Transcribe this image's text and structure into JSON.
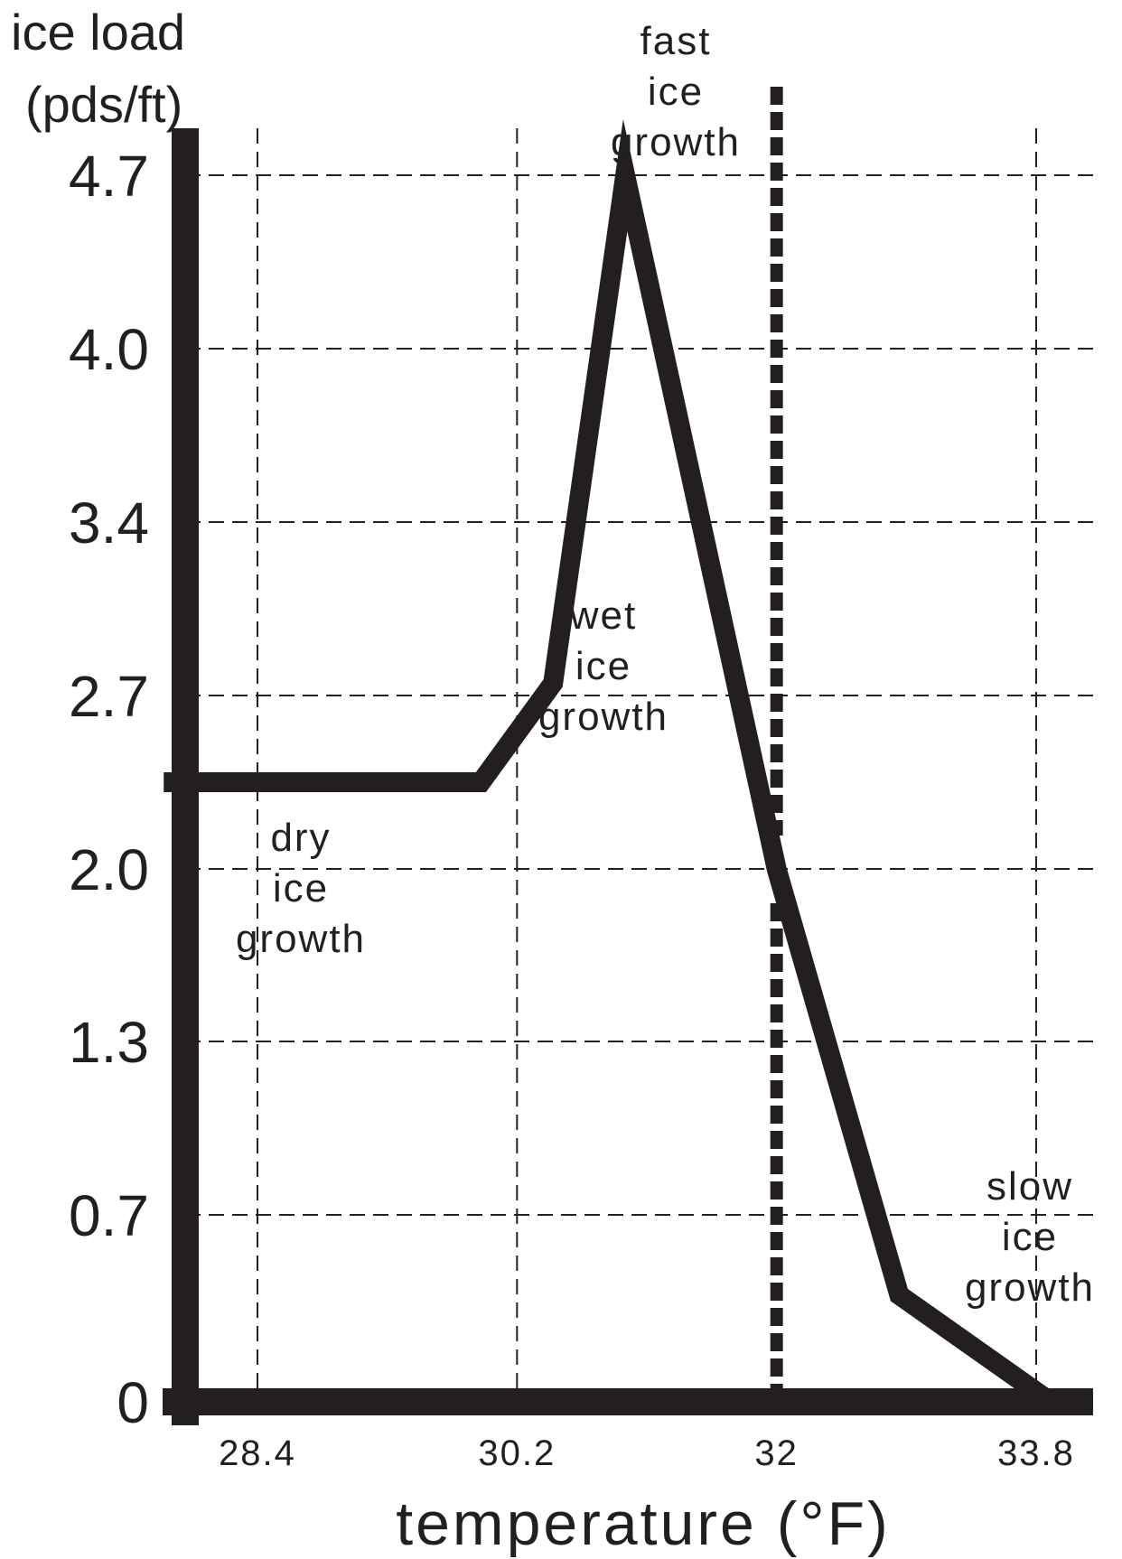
{
  "chart_data": {
    "type": "line",
    "title": "",
    "ylabel_lines": [
      "ice load",
      "(pds/ft)"
    ],
    "xlabel": "temperature (°F)",
    "y_ticks": [
      "0",
      "0.7",
      "1.3",
      "2.0",
      "2.7",
      "3.4",
      "4.0",
      "4.7"
    ],
    "x_ticks": [
      "28.4",
      "30.2",
      "32",
      "33.8"
    ],
    "grid": true,
    "reference_line": {
      "x": 32,
      "style": "dashed-thick"
    },
    "series": [
      {
        "points": [
          {
            "x": 27.75,
            "y": 2.35
          },
          {
            "x": 29.95,
            "y": 2.35
          },
          {
            "x": 30.45,
            "y": 2.75
          },
          {
            "x": 30.95,
            "y": 4.7
          },
          {
            "x": 32.0,
            "y": 2.0
          },
          {
            "x": 32.85,
            "y": 0.4
          },
          {
            "x": 33.9,
            "y": 0.0
          }
        ]
      }
    ],
    "annotations": [
      {
        "lines": [
          "fast",
          "ice",
          "growth"
        ]
      },
      {
        "lines": [
          "wet",
          "ice",
          "growth"
        ]
      },
      {
        "lines": [
          "dry",
          "ice",
          "growth"
        ]
      },
      {
        "lines": [
          "slow",
          "ice",
          "growth"
        ]
      }
    ]
  }
}
